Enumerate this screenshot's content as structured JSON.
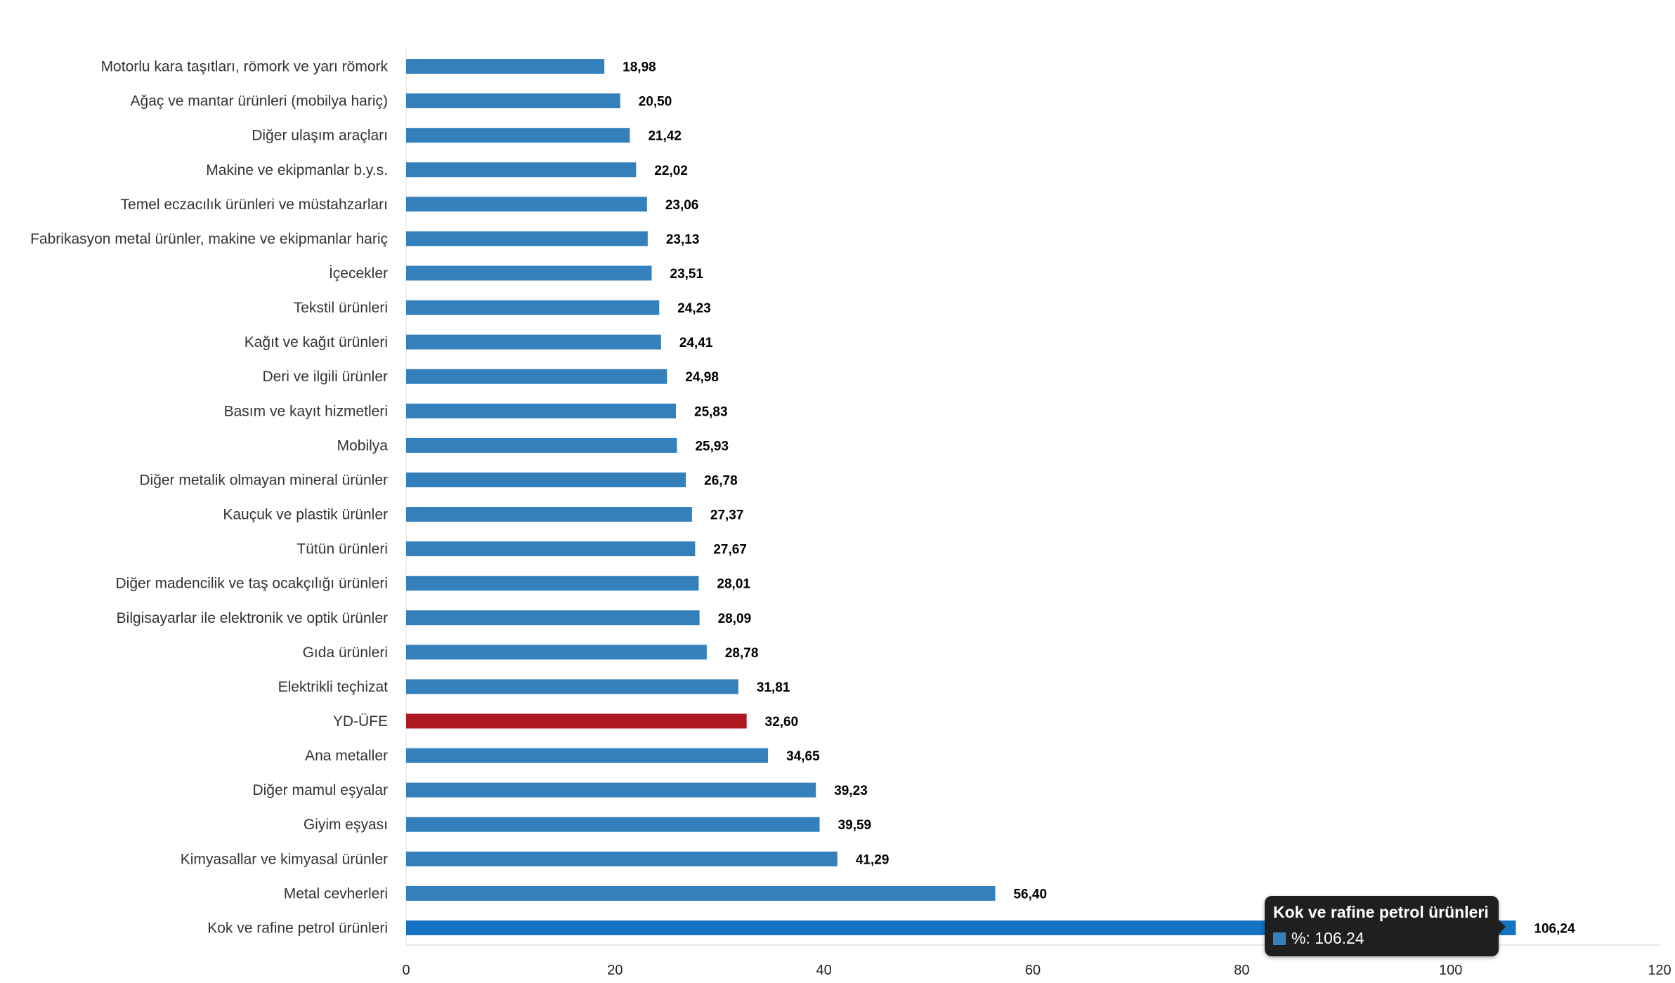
{
  "chart_data": {
    "type": "bar",
    "orientation": "horizontal",
    "categories": [
      "Motorlu kara taşıtları, römork ve yarı römork",
      "Ağaç ve mantar ürünleri (mobilya hariç)",
      "Diğer ulaşım araçları",
      "Makine ve ekipmanlar b.y.s.",
      "Temel eczacılık ürünleri ve müstahzarları",
      "Fabrikasyon metal ürünler, makine ve ekipmanlar hariç",
      "İçecekler",
      "Tekstil ürünleri",
      "Kağıt ve kağıt ürünleri",
      "Deri ve ilgili ürünler",
      "Basım ve kayıt hizmetleri",
      "Mobilya",
      "Diğer metalik olmayan mineral ürünler",
      "Kauçuk ve plastik ürünler",
      "Tütün ürünleri",
      "Diğer madencilik ve taş ocakçılığı ürünleri",
      "Bilgisayarlar ile elektronik ve optik ürünler",
      "Gıda ürünleri",
      "Elektrikli teçhizat",
      "YD-ÜFE",
      "Ana metaller",
      "Diğer mamul eşyalar",
      "Giyim eşyası",
      "Kimyasallar ve kimyasal ürünler",
      "Metal cevherleri",
      "Kok ve rafine petrol ürünleri"
    ],
    "values": [
      18.98,
      20.5,
      21.42,
      22.02,
      23.06,
      23.13,
      23.51,
      24.23,
      24.41,
      24.98,
      25.83,
      25.93,
      26.78,
      27.37,
      27.67,
      28.01,
      28.09,
      28.78,
      31.81,
      32.6,
      34.65,
      39.23,
      39.59,
      41.29,
      56.4,
      106.24
    ],
    "value_labels": [
      "18,98",
      "20,50",
      "21,42",
      "22,02",
      "23,06",
      "23,13",
      "23,51",
      "24,23",
      "24,41",
      "24,98",
      "25,83",
      "25,93",
      "26,78",
      "27,37",
      "27,67",
      "28,01",
      "28,09",
      "28,78",
      "31,81",
      "32,60",
      "34,65",
      "39,23",
      "39,59",
      "41,29",
      "56,40",
      "106,24"
    ],
    "xlim": [
      0,
      120
    ],
    "xticks": [
      0,
      20,
      40,
      60,
      80,
      100,
      120
    ],
    "grid": false,
    "colors": {
      "default": "#3380BD",
      "highlight": "#AD1A22",
      "hovered": "#1573C4"
    },
    "highlight_category": "YD-ÜFE",
    "hovered_category": "Kok ve rafine petrol ürünleri"
  },
  "tooltip": {
    "title": "Kok ve rafine petrol ürünleri",
    "value_text": "%: 106.24",
    "swatch_color": "#3380BD"
  }
}
